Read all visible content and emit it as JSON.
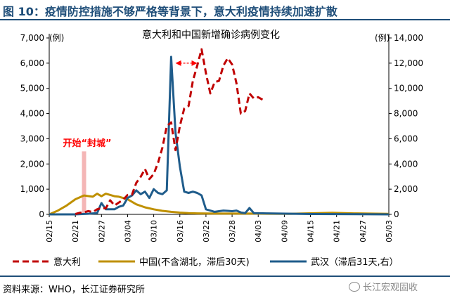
{
  "figure": {
    "title": "图 10：疫情防控措施不够严格等背景下，意大利疫情持续加速扩散",
    "source": "资料来源：WHO，长江证券研究所",
    "watermark": "长江宏观固收"
  },
  "colors": {
    "italy": "#c00000",
    "china": "#bf9000",
    "wuhan": "#1f5c8b",
    "accent": "#1f4e79",
    "lockdown_band": "#f4b6b6",
    "annotation": "#ff0000"
  },
  "chart_data": {
    "type": "line",
    "title": "意大利和中国新增确诊病例变化",
    "y_left_unit": "(例)",
    "y_right_unit": "(例)",
    "ylim_left": [
      0,
      7000
    ],
    "ylim_right": [
      0,
      14000
    ],
    "yticks_left": [
      "0",
      "1,000",
      "2,000",
      "3,000",
      "4,000",
      "5,000",
      "6,000",
      "7,000"
    ],
    "yticks_right": [
      "0",
      "2,000",
      "4,000",
      "6,000",
      "8,000",
      "10,000",
      "12,000",
      "14,000"
    ],
    "xticks": [
      "02/15",
      "02/21",
      "02/27",
      "03/04",
      "03/10",
      "03/16",
      "03/22",
      "03/28",
      "04/03",
      "04/09",
      "04/15",
      "04/21",
      "04/27",
      "05/03"
    ],
    "x_start": "02/15",
    "x_end": "05/03",
    "annotation": {
      "text": "开始“封城”",
      "band_date": "02/23",
      "band_value": 2500
    },
    "arrow": {
      "from": "03/15",
      "to": "03/20",
      "value": 6000
    },
    "series": [
      {
        "name": "意大利",
        "axis": "left",
        "style": "dashed",
        "x": [
          "02/21",
          "02/22",
          "02/23",
          "02/24",
          "02/25",
          "02/26",
          "02/27",
          "02/28",
          "02/29",
          "03/01",
          "03/02",
          "03/03",
          "03/04",
          "03/05",
          "03/06",
          "03/07",
          "03/08",
          "03/09",
          "03/10",
          "03/11",
          "03/12",
          "03/13",
          "03/14",
          "03/15",
          "03/16",
          "03/17",
          "03/18",
          "03/19",
          "03/20",
          "03/21",
          "03/22",
          "03/23",
          "03/24",
          "03/25",
          "03/26",
          "03/27",
          "03/28",
          "03/29",
          "03/30",
          "03/31",
          "04/01",
          "04/02",
          "04/03",
          "04/04"
        ],
        "values": [
          15,
          60,
          80,
          130,
          90,
          200,
          250,
          240,
          560,
          350,
          470,
          580,
          770,
          780,
          1250,
          1490,
          1800,
          1400,
          1600,
          2050,
          2650,
          3500,
          3650,
          2550,
          3500,
          4200,
          4300,
          5300,
          5900,
          6550,
          5600,
          4800,
          5250,
          5300,
          5900,
          6200,
          5950,
          5200,
          4000,
          4100,
          4800,
          4600,
          4650,
          4550
        ]
      },
      {
        "name": "中国(不含湖北，滞后30天)",
        "axis": "left",
        "style": "solid",
        "x": [
          "02/15",
          "02/17",
          "02/19",
          "02/21",
          "02/23",
          "02/25",
          "02/26",
          "02/27",
          "02/28",
          "03/01",
          "03/02",
          "03/04",
          "03/06",
          "03/08",
          "03/10",
          "03/12",
          "03/14",
          "03/16",
          "03/18",
          "03/20",
          "03/24",
          "04/01",
          "04/10",
          "04/20",
          "04/25",
          "05/03"
        ],
        "values": [
          0,
          150,
          350,
          600,
          750,
          700,
          820,
          720,
          820,
          720,
          700,
          600,
          400,
          280,
          200,
          140,
          100,
          70,
          50,
          40,
          30,
          30,
          20,
          60,
          40,
          20
        ]
      },
      {
        "name": "武汉（滞后31天,右）",
        "axis": "right",
        "style": "solid",
        "x": [
          "02/15",
          "02/18",
          "02/21",
          "02/24",
          "02/26",
          "02/27",
          "02/28",
          "03/01",
          "03/02",
          "03/03",
          "03/04",
          "03/05",
          "03/06",
          "03/07",
          "03/08",
          "03/09",
          "03/10",
          "03/11",
          "03/12",
          "03/13",
          "03/14",
          "03/15",
          "03/16",
          "03/17",
          "03/18",
          "03/19",
          "03/20",
          "03/21",
          "03/22",
          "03/24",
          "03/26",
          "03/27",
          "03/28",
          "03/29",
          "03/30",
          "03/31",
          "04/01",
          "04/02",
          "04/05",
          "04/08",
          "04/15",
          "05/03"
        ],
        "values": [
          0,
          0,
          0,
          50,
          100,
          900,
          400,
          400,
          600,
          700,
          1300,
          1500,
          1900,
          1600,
          1800,
          1300,
          2000,
          1700,
          1600,
          1900,
          12500,
          6500,
          3800,
          1800,
          1700,
          1800,
          1700,
          1500,
          400,
          200,
          300,
          280,
          250,
          300,
          150,
          100,
          500,
          100,
          80,
          60,
          30,
          0
        ]
      }
    ]
  }
}
